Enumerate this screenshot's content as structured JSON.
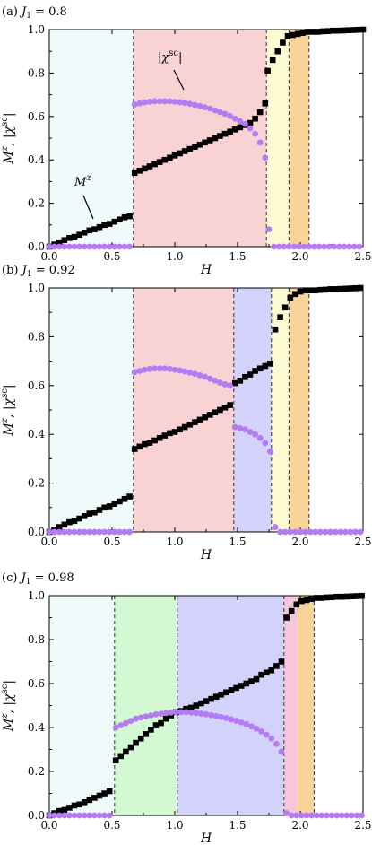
{
  "figure": {
    "panels": [
      {
        "label": "(a) J₁ = 0.8"
      },
      {
        "label": "(b) J₁ = 0.92"
      },
      {
        "label": "(c) J₁ = 0.98"
      }
    ]
  },
  "chart_data": [
    {
      "type": "scatter",
      "title": "(a) J₁ = 0.8",
      "xlabel": "H",
      "ylabel": "Mᶻ, |χˢᶜ|",
      "xlim": [
        0.0,
        2.5
      ],
      "ylim": [
        0.0,
        1.0
      ],
      "xticks": [
        "0.0",
        "0.5",
        "1.0",
        "1.5",
        "2.0",
        "2.5"
      ],
      "yticks": [
        "0.0",
        "0.2",
        "0.4",
        "0.6",
        "0.8",
        "1.0"
      ],
      "grid": false,
      "annotations": [
        {
          "text": "Mᶻ",
          "target_series": "magnetization",
          "x": 0.35,
          "y": 0.1
        },
        {
          "text": "|χˢᶜ|",
          "target_series": "chi_sc",
          "x": 0.9,
          "y": 0.71
        }
      ],
      "phase_regions": [
        {
          "x0": 0.0,
          "x1": 0.67,
          "color": "#effbfb"
        },
        {
          "x0": 0.67,
          "x1": 1.73,
          "color": "#f9d3d3"
        },
        {
          "x0": 1.73,
          "x1": 1.91,
          "color": "#fbfad2"
        },
        {
          "x0": 1.91,
          "x1": 2.07,
          "color": "#f9d49a"
        }
      ],
      "transitions": [
        0.67,
        1.73,
        1.91,
        2.07
      ],
      "series": [
        {
          "name": "magnetization",
          "marker": "square",
          "color": "#000000",
          "x": [
            0.0,
            0.04,
            0.08,
            0.12,
            0.16,
            0.2,
            0.24,
            0.28,
            0.32,
            0.36,
            0.4,
            0.44,
            0.48,
            0.52,
            0.56,
            0.6,
            0.64,
            0.68,
            0.72,
            0.76,
            0.8,
            0.84,
            0.88,
            0.92,
            0.96,
            1.0,
            1.04,
            1.08,
            1.12,
            1.16,
            1.2,
            1.24,
            1.28,
            1.32,
            1.36,
            1.4,
            1.44,
            1.48,
            1.52,
            1.56,
            1.6,
            1.64,
            1.68,
            1.72,
            1.74,
            1.78,
            1.82,
            1.86,
            1.9,
            1.94,
            1.98,
            2.02,
            2.06,
            2.1,
            2.14,
            2.18,
            2.22,
            2.26,
            2.3,
            2.34,
            2.38,
            2.42,
            2.46,
            2.5
          ],
          "y": [
            0.0,
            0.01,
            0.02,
            0.03,
            0.04,
            0.045,
            0.055,
            0.065,
            0.075,
            0.08,
            0.09,
            0.1,
            0.105,
            0.115,
            0.125,
            0.135,
            0.14,
            0.34,
            0.35,
            0.36,
            0.37,
            0.38,
            0.39,
            0.4,
            0.41,
            0.42,
            0.43,
            0.44,
            0.45,
            0.46,
            0.47,
            0.48,
            0.49,
            0.5,
            0.51,
            0.52,
            0.53,
            0.54,
            0.55,
            0.56,
            0.57,
            0.59,
            0.62,
            0.66,
            0.81,
            0.86,
            0.9,
            0.94,
            0.97,
            0.975,
            0.98,
            0.985,
            0.99,
            0.99,
            0.99,
            0.992,
            0.993,
            0.995,
            0.995,
            0.996,
            0.997,
            0.998,
            0.999,
            1.0
          ]
        },
        {
          "name": "chi_sc",
          "marker": "circle",
          "color": "#b57cf2",
          "x": [
            0.0,
            0.04,
            0.08,
            0.12,
            0.16,
            0.2,
            0.24,
            0.28,
            0.32,
            0.36,
            0.4,
            0.44,
            0.48,
            0.52,
            0.56,
            0.6,
            0.64,
            0.68,
            0.72,
            0.76,
            0.8,
            0.84,
            0.88,
            0.92,
            0.96,
            1.0,
            1.04,
            1.08,
            1.12,
            1.16,
            1.2,
            1.24,
            1.28,
            1.32,
            1.36,
            1.4,
            1.44,
            1.48,
            1.52,
            1.56,
            1.6,
            1.64,
            1.68,
            1.72,
            1.75,
            1.79,
            1.83,
            1.87,
            1.91,
            1.95,
            1.99,
            2.03,
            2.07,
            2.11,
            2.15,
            2.19,
            2.23,
            2.27,
            2.31,
            2.35,
            2.39,
            2.43,
            2.47
          ],
          "y": [
            0.0,
            0.0,
            0.0,
            0.0,
            0.0,
            0.0,
            0.0,
            0.0,
            0.0,
            0.0,
            0.0,
            0.0,
            0.0,
            0.0,
            0.0,
            0.0,
            0.0,
            0.655,
            0.66,
            0.665,
            0.668,
            0.67,
            0.67,
            0.67,
            0.67,
            0.668,
            0.665,
            0.662,
            0.658,
            0.653,
            0.648,
            0.642,
            0.636,
            0.628,
            0.62,
            0.612,
            0.602,
            0.59,
            0.578,
            0.565,
            0.545,
            0.52,
            0.48,
            0.41,
            0.08,
            0.0,
            0.0,
            0.0,
            0.0,
            0.0,
            0.0,
            0.0,
            0.0,
            0.0,
            0.0,
            0.0,
            0.0,
            0.0,
            0.0,
            0.0,
            0.0,
            0.0,
            0.0
          ]
        }
      ]
    },
    {
      "type": "scatter",
      "title": "(b) J₁ = 0.92",
      "xlabel": "H",
      "ylabel": "Mᶻ, |χˢᶜ|",
      "xlim": [
        0.0,
        2.5
      ],
      "ylim": [
        0.0,
        1.0
      ],
      "xticks": [
        "0.0",
        "0.5",
        "1.0",
        "1.5",
        "2.0",
        "2.5"
      ],
      "yticks": [
        "0.0",
        "0.2",
        "0.4",
        "0.6",
        "0.8",
        "1.0"
      ],
      "grid": false,
      "phase_regions": [
        {
          "x0": 0.0,
          "x1": 0.67,
          "color": "#effbfb"
        },
        {
          "x0": 0.67,
          "x1": 1.47,
          "color": "#f9d3d3"
        },
        {
          "x0": 1.47,
          "x1": 1.77,
          "color": "#d2d2fb"
        },
        {
          "x0": 1.77,
          "x1": 1.91,
          "color": "#fbfad2"
        },
        {
          "x0": 1.91,
          "x1": 2.07,
          "color": "#f9d49a"
        }
      ],
      "transitions": [
        0.67,
        1.47,
        1.77,
        1.91,
        2.07
      ],
      "series": [
        {
          "name": "magnetization",
          "marker": "square",
          "color": "#000000",
          "x": [
            0.0,
            0.04,
            0.08,
            0.12,
            0.16,
            0.2,
            0.24,
            0.28,
            0.32,
            0.36,
            0.4,
            0.44,
            0.48,
            0.52,
            0.56,
            0.6,
            0.64,
            0.68,
            0.72,
            0.76,
            0.8,
            0.84,
            0.88,
            0.92,
            0.96,
            1.0,
            1.04,
            1.08,
            1.12,
            1.16,
            1.2,
            1.24,
            1.28,
            1.32,
            1.36,
            1.4,
            1.44,
            1.48,
            1.52,
            1.56,
            1.6,
            1.64,
            1.68,
            1.72,
            1.76,
            1.8,
            1.84,
            1.88,
            1.92,
            1.96,
            2.0,
            2.04,
            2.08,
            2.12,
            2.16,
            2.2,
            2.24,
            2.28,
            2.32,
            2.36,
            2.4,
            2.44,
            2.48
          ],
          "y": [
            0.0,
            0.01,
            0.02,
            0.03,
            0.04,
            0.045,
            0.055,
            0.065,
            0.075,
            0.08,
            0.09,
            0.1,
            0.105,
            0.115,
            0.125,
            0.135,
            0.145,
            0.34,
            0.35,
            0.36,
            0.365,
            0.375,
            0.385,
            0.395,
            0.405,
            0.41,
            0.42,
            0.43,
            0.44,
            0.45,
            0.46,
            0.47,
            0.48,
            0.49,
            0.5,
            0.51,
            0.52,
            0.61,
            0.62,
            0.635,
            0.645,
            0.66,
            0.67,
            0.68,
            0.69,
            0.83,
            0.88,
            0.92,
            0.96,
            0.975,
            0.985,
            0.99,
            0.99,
            0.99,
            0.992,
            0.993,
            0.995,
            0.995,
            0.996,
            0.997,
            0.998,
            0.999,
            1.0
          ]
        },
        {
          "name": "chi_sc",
          "marker": "circle",
          "color": "#b57cf2",
          "x": [
            0.0,
            0.04,
            0.08,
            0.12,
            0.16,
            0.2,
            0.24,
            0.28,
            0.32,
            0.36,
            0.4,
            0.44,
            0.48,
            0.52,
            0.56,
            0.6,
            0.64,
            0.68,
            0.72,
            0.76,
            0.8,
            0.84,
            0.88,
            0.92,
            0.96,
            1.0,
            1.04,
            1.08,
            1.12,
            1.16,
            1.2,
            1.24,
            1.28,
            1.32,
            1.36,
            1.4,
            1.44,
            1.48,
            1.52,
            1.56,
            1.6,
            1.64,
            1.68,
            1.72,
            1.76,
            1.8,
            1.84,
            1.88,
            1.92,
            1.96,
            2.0,
            2.04,
            2.08,
            2.12,
            2.16,
            2.2,
            2.24,
            2.28,
            2.32,
            2.36,
            2.4,
            2.44,
            2.48
          ],
          "y": [
            0.0,
            0.0,
            0.0,
            0.0,
            0.0,
            0.0,
            0.0,
            0.0,
            0.0,
            0.0,
            0.0,
            0.0,
            0.0,
            0.0,
            0.0,
            0.0,
            0.0,
            0.655,
            0.66,
            0.665,
            0.668,
            0.67,
            0.67,
            0.67,
            0.668,
            0.665,
            0.662,
            0.658,
            0.653,
            0.648,
            0.642,
            0.636,
            0.628,
            0.62,
            0.612,
            0.605,
            0.6,
            0.43,
            0.425,
            0.42,
            0.41,
            0.4,
            0.385,
            0.365,
            0.33,
            0.02,
            0.0,
            0.0,
            0.0,
            0.0,
            0.0,
            0.0,
            0.0,
            0.0,
            0.0,
            0.0,
            0.0,
            0.0,
            0.0,
            0.0,
            0.0,
            0.0,
            0.0
          ]
        }
      ]
    },
    {
      "type": "scatter",
      "title": "(c) J₁ = 0.98",
      "xlabel": "H",
      "ylabel": "Mᶻ, |χˢᶜ|",
      "xlim": [
        0.0,
        2.5
      ],
      "ylim": [
        0.0,
        1.0
      ],
      "xticks": [
        "0.0",
        "0.5",
        "1.0",
        "1.5",
        "2.0",
        "2.5"
      ],
      "yticks": [
        "0.0",
        "0.2",
        "0.4",
        "0.6",
        "0.8",
        "1.0"
      ],
      "grid": false,
      "phase_regions": [
        {
          "x0": 0.0,
          "x1": 0.52,
          "color": "#effbfb"
        },
        {
          "x0": 0.52,
          "x1": 1.02,
          "color": "#d3f8d3"
        },
        {
          "x0": 1.02,
          "x1": 1.87,
          "color": "#d2d2fb"
        },
        {
          "x0": 1.87,
          "x1": 1.98,
          "color": "#f7c6da"
        },
        {
          "x0": 1.98,
          "x1": 2.11,
          "color": "#f9d49a"
        }
      ],
      "transitions": [
        0.52,
        1.02,
        1.87,
        2.11
      ],
      "series": [
        {
          "name": "magnetization",
          "marker": "square",
          "color": "#000000",
          "x": [
            0.0,
            0.04,
            0.08,
            0.12,
            0.16,
            0.2,
            0.24,
            0.28,
            0.32,
            0.36,
            0.4,
            0.44,
            0.48,
            0.53,
            0.57,
            0.61,
            0.65,
            0.69,
            0.73,
            0.77,
            0.81,
            0.85,
            0.89,
            0.93,
            0.97,
            1.01,
            1.05,
            1.09,
            1.13,
            1.17,
            1.21,
            1.25,
            1.29,
            1.33,
            1.37,
            1.41,
            1.45,
            1.49,
            1.53,
            1.57,
            1.61,
            1.65,
            1.69,
            1.73,
            1.77,
            1.81,
            1.85,
            1.89,
            1.93,
            1.97,
            2.01,
            2.05,
            2.09,
            2.13,
            2.17,
            2.21,
            2.25,
            2.29,
            2.33,
            2.37,
            2.41,
            2.45,
            2.49
          ],
          "y": [
            0.0,
            0.01,
            0.02,
            0.025,
            0.035,
            0.045,
            0.05,
            0.06,
            0.07,
            0.08,
            0.09,
            0.1,
            0.11,
            0.25,
            0.27,
            0.29,
            0.31,
            0.33,
            0.35,
            0.37,
            0.39,
            0.41,
            0.42,
            0.44,
            0.455,
            0.47,
            0.475,
            0.485,
            0.49,
            0.5,
            0.51,
            0.52,
            0.53,
            0.54,
            0.55,
            0.56,
            0.57,
            0.58,
            0.59,
            0.6,
            0.61,
            0.62,
            0.64,
            0.65,
            0.66,
            0.68,
            0.7,
            0.9,
            0.93,
            0.96,
            0.975,
            0.98,
            0.985,
            0.99,
            0.99,
            0.992,
            0.993,
            0.995,
            0.995,
            0.996,
            0.997,
            0.998,
            0.999
          ]
        },
        {
          "name": "chi_sc",
          "marker": "circle",
          "color": "#b57cf2",
          "x": [
            0.0,
            0.04,
            0.08,
            0.12,
            0.16,
            0.2,
            0.24,
            0.28,
            0.32,
            0.36,
            0.4,
            0.44,
            0.48,
            0.53,
            0.57,
            0.61,
            0.65,
            0.69,
            0.73,
            0.77,
            0.81,
            0.85,
            0.89,
            0.93,
            0.97,
            1.01,
            1.05,
            1.09,
            1.13,
            1.17,
            1.21,
            1.25,
            1.29,
            1.33,
            1.37,
            1.41,
            1.45,
            1.49,
            1.53,
            1.57,
            1.61,
            1.65,
            1.69,
            1.73,
            1.77,
            1.81,
            1.85,
            1.89,
            1.93,
            1.97,
            2.01,
            2.05,
            2.09,
            2.13,
            2.17,
            2.21,
            2.25,
            2.29,
            2.33,
            2.37,
            2.41,
            2.45,
            2.49
          ],
          "y": [
            0.0,
            0.0,
            0.0,
            0.0,
            0.0,
            0.0,
            0.0,
            0.0,
            0.0,
            0.0,
            0.0,
            0.0,
            0.0,
            0.4,
            0.41,
            0.42,
            0.43,
            0.44,
            0.445,
            0.45,
            0.455,
            0.46,
            0.463,
            0.466,
            0.468,
            0.47,
            0.47,
            0.47,
            0.468,
            0.466,
            0.463,
            0.46,
            0.456,
            0.452,
            0.448,
            0.443,
            0.437,
            0.43,
            0.423,
            0.415,
            0.405,
            0.395,
            0.382,
            0.367,
            0.35,
            0.325,
            0.29,
            0.01,
            0.0,
            0.0,
            0.0,
            0.0,
            0.0,
            0.0,
            0.0,
            0.0,
            0.0,
            0.0,
            0.0,
            0.0,
            0.0,
            0.0,
            0.0
          ]
        }
      ]
    }
  ]
}
